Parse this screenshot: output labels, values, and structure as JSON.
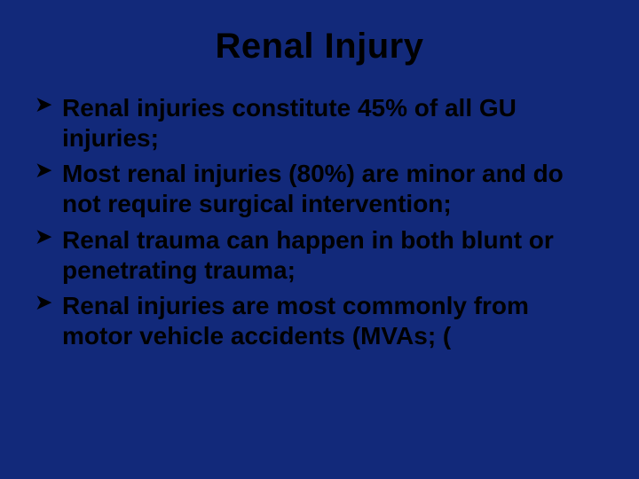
{
  "slide": {
    "background_color": "#12297a",
    "title": {
      "text": "Renal Injury",
      "color": "#000000",
      "fontsize": 40
    },
    "bullet_marker_color": "#000000",
    "body_color": "#000000",
    "body_fontsize": 28,
    "body_lineheight": 1.22,
    "bullets": [
      "Renal injuries constitute 45% of all GU injuries;",
      "Most renal injuries (80%) are minor and do not require surgical intervention;",
      "Renal trauma can happen in both blunt or penetrating trauma;",
      "Renal injuries are most commonly from motor vehicle accidents (MVAs; ("
    ]
  }
}
